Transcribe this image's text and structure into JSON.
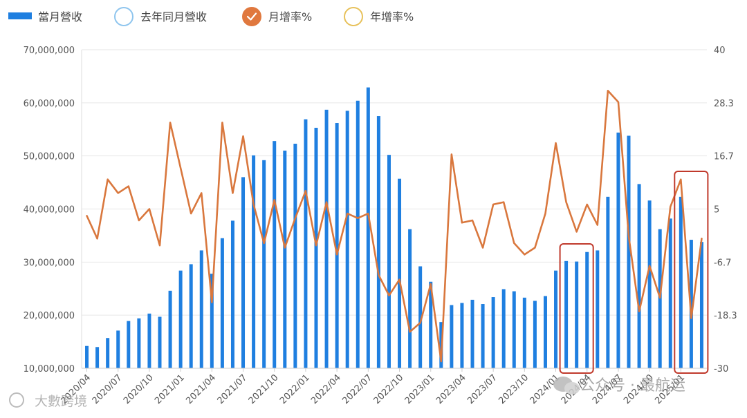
{
  "chart_data": {
    "type": "bar+line",
    "legend": {
      "position": "top-left",
      "items": [
        {
          "label": "當月營收",
          "kind": "bar",
          "color": "#1f7fe0",
          "active": true
        },
        {
          "label": "去年同月營收",
          "kind": "circle",
          "color": "#8ec5ee",
          "active": false
        },
        {
          "label": "月增率%",
          "kind": "circle-check",
          "color": "#e0783e",
          "active": true
        },
        {
          "label": "年增率%",
          "kind": "circle",
          "color": "#e7c15a",
          "active": false
        }
      ]
    },
    "categories": [
      "2020/04",
      "2020/05",
      "2020/06",
      "2020/07",
      "2020/08",
      "2020/09",
      "2020/10",
      "2020/11",
      "2020/12",
      "2021/01",
      "2021/02",
      "2021/03",
      "2021/04",
      "2021/05",
      "2021/06",
      "2021/07",
      "2021/08",
      "2021/09",
      "2021/10",
      "2021/11",
      "2021/12",
      "2022/01",
      "2022/02",
      "2022/03",
      "2022/04",
      "2022/05",
      "2022/06",
      "2022/07",
      "2022/08",
      "2022/09",
      "2022/10",
      "2022/11",
      "2022/12",
      "2023/01",
      "2023/02",
      "2023/03",
      "2023/04",
      "2023/05",
      "2023/06",
      "2023/07",
      "2023/08",
      "2023/09",
      "2023/10",
      "2023/11",
      "2023/12",
      "2024/01",
      "2024/02",
      "2024/03",
      "2024/04",
      "2024/05",
      "2024/06",
      "2024/07",
      "2024/08",
      "2024/09",
      "2024/10",
      "2024/11",
      "2024/12",
      "2025/01",
      "2025/02",
      "2025/03"
    ],
    "x_tick_labels": [
      "2020/04",
      "2020/07",
      "2020/10",
      "2021/01",
      "2021/04",
      "2021/07",
      "2021/10",
      "2022/01",
      "2022/04",
      "2022/07",
      "2022/10",
      "2023/01",
      "2023/04",
      "2023/07",
      "2023/10",
      "2024/01",
      "2024/04",
      "2024/07",
      "2024/10",
      "2025/01"
    ],
    "series": [
      {
        "name": "當月營收",
        "type": "bar",
        "axis": "left",
        "color": "#1f7fe0",
        "values": [
          14200000,
          14000000,
          15700000,
          17100000,
          18900000,
          19400000,
          20300000,
          19700000,
          24600000,
          28400000,
          29600000,
          32200000,
          27800000,
          34500000,
          37800000,
          46000000,
          50100000,
          49200000,
          52800000,
          51000000,
          52300000,
          56900000,
          55300000,
          58700000,
          56200000,
          58500000,
          60400000,
          62900000,
          57500000,
          50200000,
          45700000,
          36200000,
          29200000,
          26300000,
          18700000,
          21900000,
          22300000,
          22900000,
          22100000,
          23400000,
          24900000,
          24500000,
          23300000,
          22700000,
          23600000,
          28400000,
          30200000,
          30100000,
          31900000,
          32200000,
          42300000,
          54400000,
          53800000,
          44700000,
          41600000,
          36200000,
          38200000,
          42300000,
          34200000,
          33800000
        ]
      },
      {
        "name": "月增率%",
        "type": "line",
        "axis": "right",
        "color": "#d9773d",
        "values": [
          3.5,
          -1.5,
          11.5,
          8.5,
          10.0,
          2.5,
          5.0,
          -3.0,
          24.0,
          14.0,
          4.0,
          8.5,
          -15.5,
          24.0,
          8.5,
          21.0,
          6.0,
          -2.5,
          7.0,
          -3.5,
          3.0,
          9.0,
          -3.0,
          6.5,
          -5.0,
          4.0,
          3.0,
          4.0,
          -9.5,
          -14.0,
          -10.5,
          -22.0,
          -20.0,
          -11.5,
          -28.5,
          17.0,
          2.0,
          2.5,
          -3.5,
          6.0,
          6.5,
          -2.5,
          -5.0,
          -3.5,
          4.0,
          19.5,
          6.5,
          0.0,
          6.0,
          1.5,
          31.0,
          28.5,
          -1.0,
          -17.5,
          -7.5,
          -14.5,
          5.5,
          11.5,
          -19.0,
          -1.5
        ]
      }
    ],
    "y_left": {
      "min": 10000000,
      "max": 70000000,
      "ticks": [
        "10,000,000",
        "20,000,000",
        "30,000,000",
        "40,000,000",
        "50,000,000",
        "60,000,000",
        "70,000,000"
      ]
    },
    "y_right": {
      "min": -30,
      "max": 40,
      "ticks": [
        "-30",
        "-18.3",
        "-6.7",
        "5",
        "16.7",
        "28.3",
        "40"
      ]
    },
    "grid": true,
    "highlight_boxes": [
      {
        "from": "2024/02",
        "to": "2024/04",
        "color": "#c0392b"
      },
      {
        "from": "2025/01",
        "to": "2025/03",
        "color": "#c0392b"
      }
    ],
    "watermarks": [
      "大數跨境",
      "公众号 · 最航运"
    ]
  }
}
